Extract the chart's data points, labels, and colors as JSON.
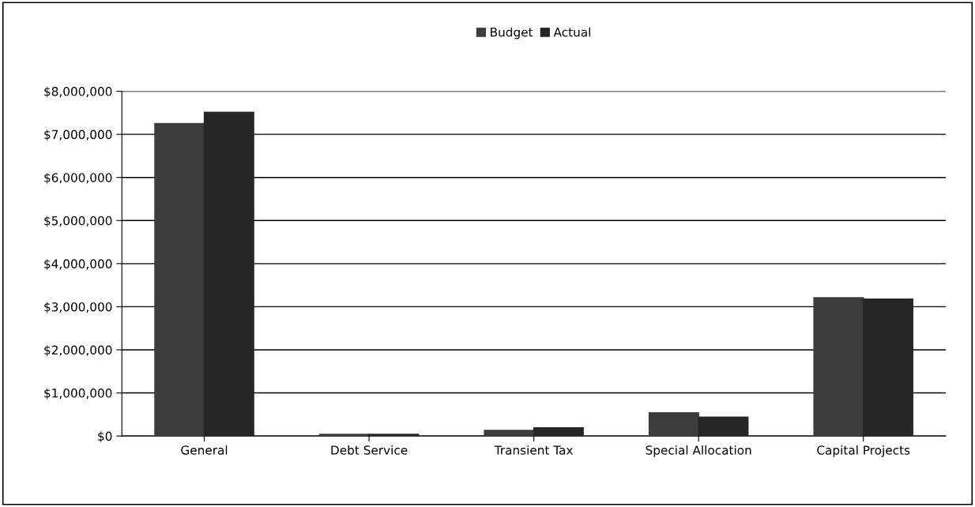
{
  "chart_data": {
    "type": "bar",
    "categories": [
      "General",
      "Debt Service",
      "Transient Tax",
      "Special Allocation",
      "Capital Projects"
    ],
    "series": [
      {
        "name": "Budget",
        "color": "#3c3c3c",
        "values": [
          7250000,
          40000,
          130000,
          540000,
          3210000
        ]
      },
      {
        "name": "Actual",
        "color": "#262626",
        "values": [
          7510000,
          40000,
          190000,
          440000,
          3180000
        ]
      }
    ],
    "ylim": [
      0,
      8000000
    ],
    "yticks": [
      {
        "value": 0,
        "label": "$0"
      },
      {
        "value": 1000000,
        "label": "$1,000,000"
      },
      {
        "value": 2000000,
        "label": "$2,000,000"
      },
      {
        "value": 3000000,
        "label": "$3,000,000"
      },
      {
        "value": 4000000,
        "label": "$4,000,000"
      },
      {
        "value": 5000000,
        "label": "$5,000,000"
      },
      {
        "value": 6000000,
        "label": "$6,000,000"
      },
      {
        "value": 7000000,
        "label": "$7,000,000"
      },
      {
        "value": 8000000,
        "label": "$8,000,000"
      }
    ],
    "grid": "y",
    "legend": "top"
  }
}
